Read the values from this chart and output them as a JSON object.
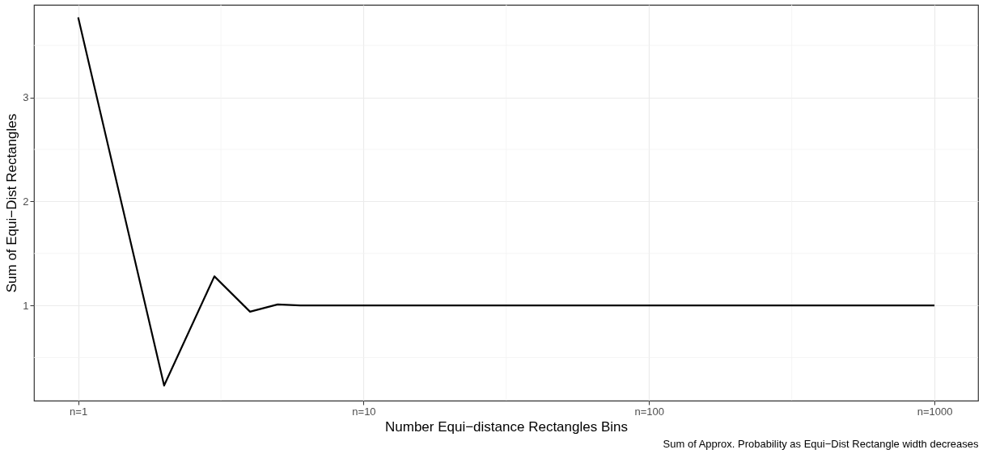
{
  "chart_data": {
    "type": "line",
    "xlabel": "Number Equi−distance Rectangles Bins",
    "ylabel": "Sum of Equi−Dist Rectangles",
    "annotations": [
      "Sum of Approx. Probability as Equi−Dist Rectangle width decreases"
    ],
    "x": [
      1,
      2,
      3,
      4,
      5,
      6,
      10,
      100,
      1000
    ],
    "series": [
      {
        "color": "#000000",
        "values": [
          3.77,
          0.23,
          1.28,
          0.94,
          1.01,
          1.0,
          1.0,
          1.0,
          1.0
        ]
      }
    ],
    "log": "x",
    "xlim": [
      0.7,
      1422
    ],
    "xticks": [
      {
        "value": 1,
        "label": "n=1"
      },
      {
        "value": 10,
        "label": "n=10"
      },
      {
        "value": 100,
        "label": "n=100"
      },
      {
        "value": 1000,
        "label": "n=1000"
      }
    ],
    "ylim": [
      0.085,
      3.89
    ],
    "yticks": [
      1,
      2,
      3
    ],
    "grid": true,
    "line_style": "solid"
  }
}
